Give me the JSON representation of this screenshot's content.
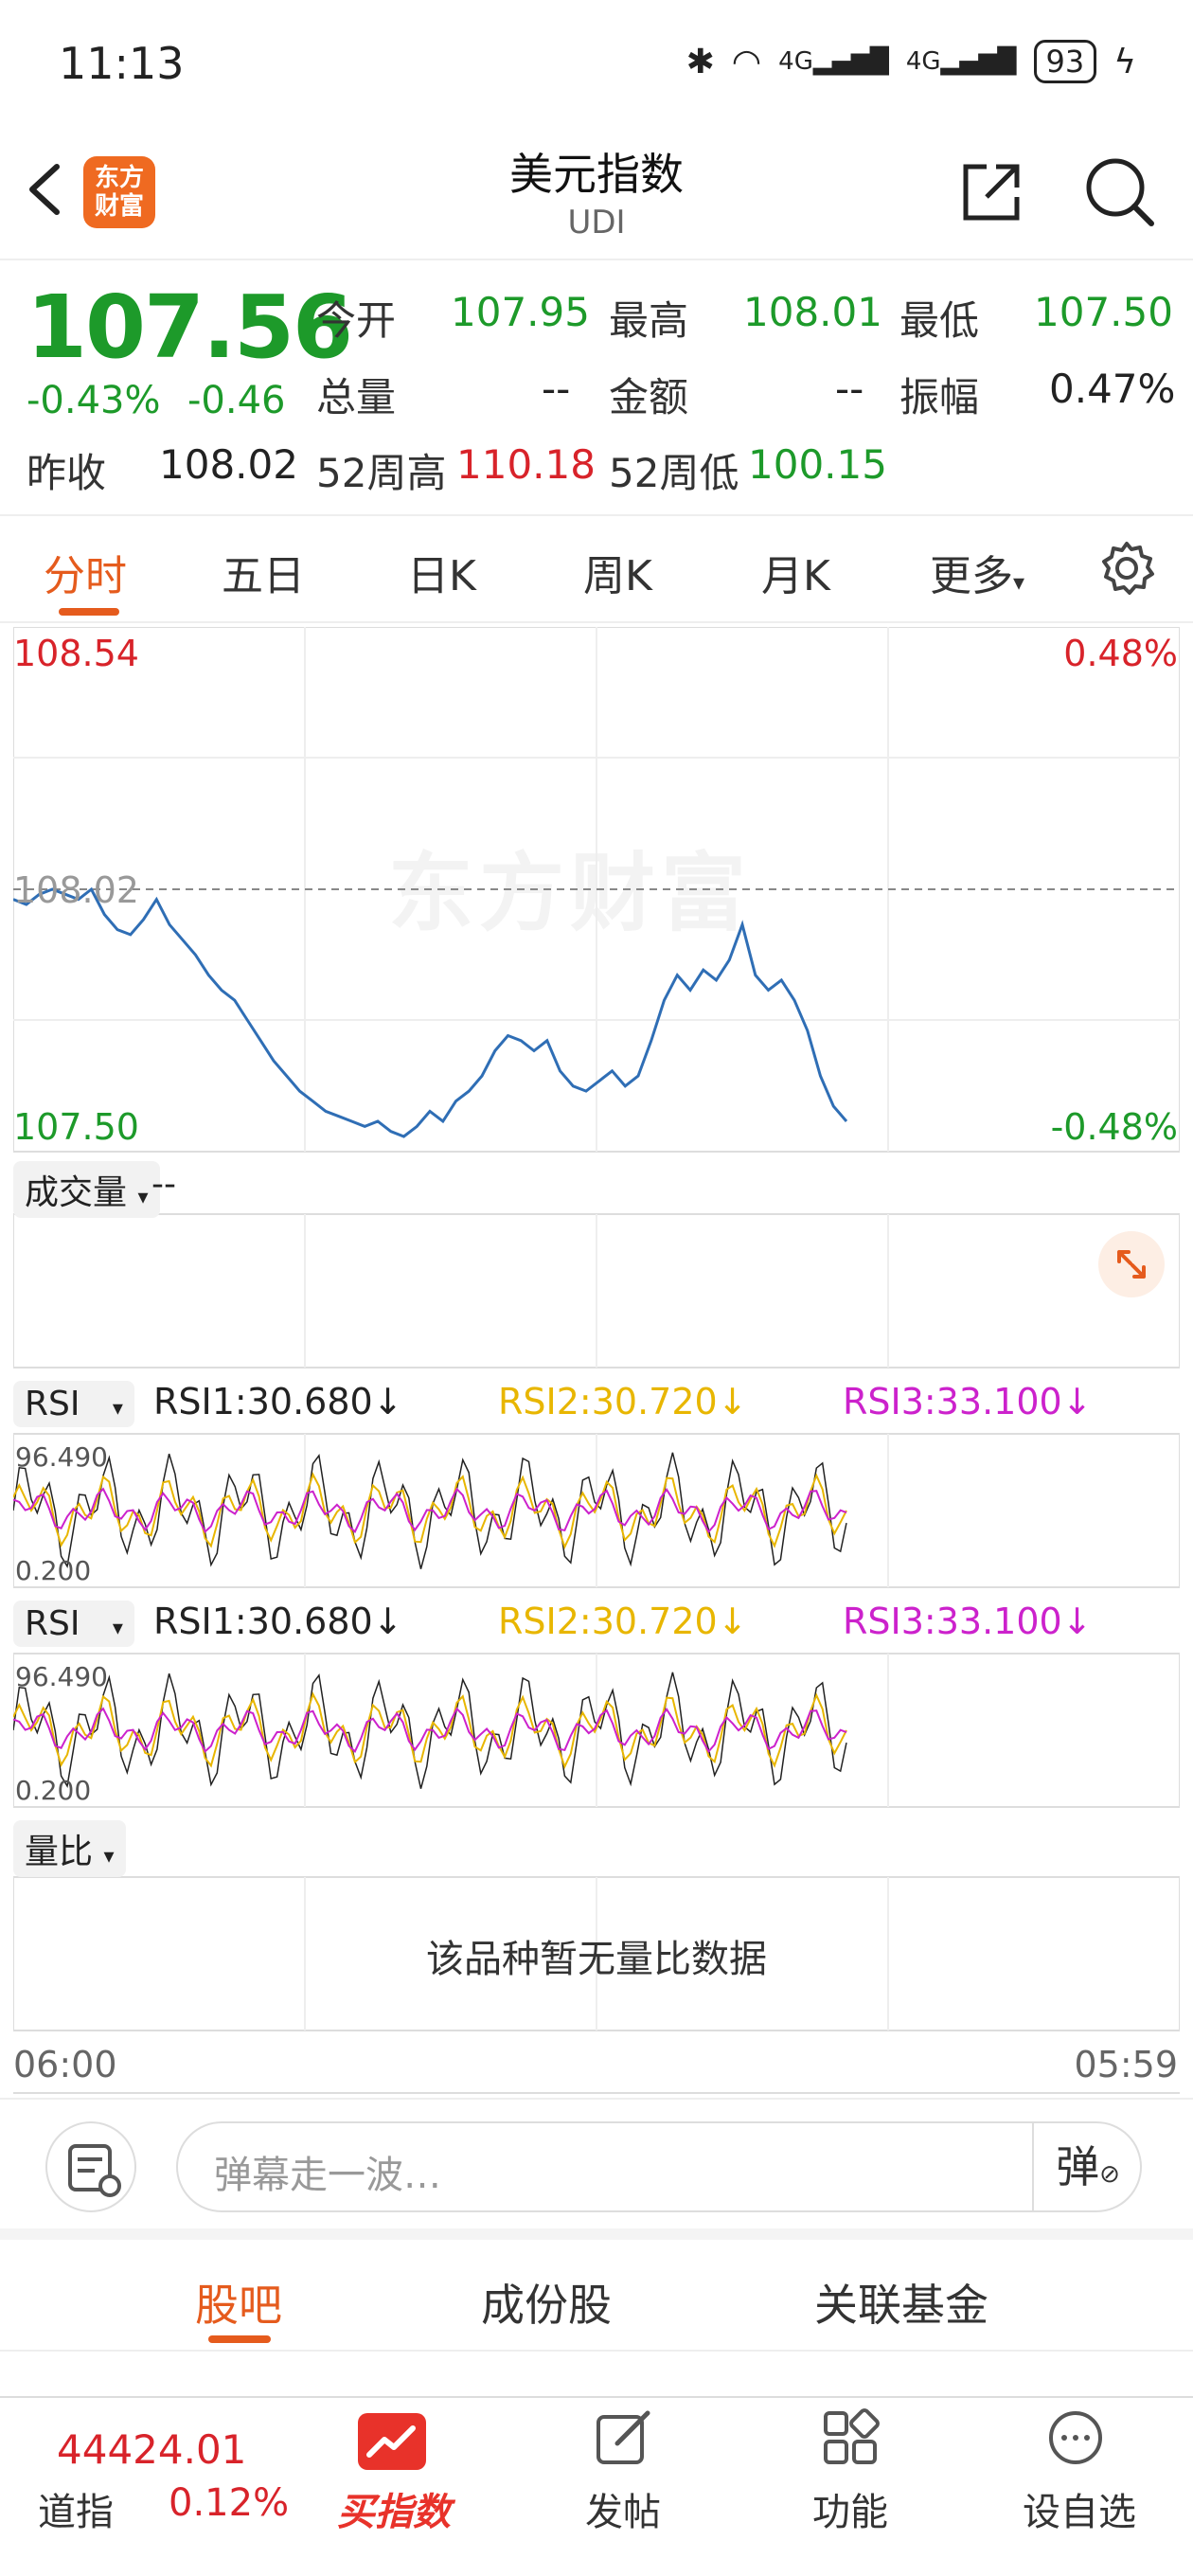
{
  "status_bar": {
    "time": "11:13",
    "signal1": "4G",
    "signal2": "4G",
    "battery": "93"
  },
  "header": {
    "logo_line1": "东方",
    "logo_line2": "财富",
    "title": "美元指数",
    "code": "UDI"
  },
  "quote": {
    "price": "107.56",
    "change_pct": "-0.43%",
    "change": "-0.46",
    "open_label": "今开",
    "open": "107.95",
    "high_label": "最高",
    "high": "108.01",
    "low_label": "最低",
    "low": "107.50",
    "volume_label": "总量",
    "volume": "--",
    "amount_label": "金额",
    "amount": "--",
    "amplitude_label": "振幅",
    "amplitude": "0.47%",
    "prev_close_label": "昨收",
    "prev_close": "108.02",
    "w52_high_label": "52周高",
    "w52_high": "110.18",
    "w52_low_label": "52周低",
    "w52_low": "100.15"
  },
  "tabs": [
    "分时",
    "五日",
    "日K",
    "周K",
    "月K",
    "更多"
  ],
  "chart": {
    "top_price": "108.54",
    "top_pct": "0.48%",
    "mid_price": "108.02",
    "bottom_price": "107.50",
    "bottom_pct": "-0.48%",
    "watermark": "东方财富",
    "volume_label": "成交量",
    "volume_value": "--",
    "rsi_label": "RSI",
    "rsi1": "RSI1:30.680↓",
    "rsi2": "RSI2:30.720↓",
    "rsi3": "RSI3:33.100↓",
    "rsi_top": "96.490",
    "rsi_bottom": "0.200",
    "ratio_label": "量比",
    "ratio_empty": "该品种暂无量比数据",
    "time_start": "06:00",
    "time_end": "05:59"
  },
  "chart_data": {
    "type": "line",
    "ylim": [
      107.5,
      108.54
    ],
    "reference": 108.02,
    "series": [
      {
        "values": [
          108.0,
          107.99,
          108.01,
          108.02,
          108.01,
          108.0,
          108.02,
          107.97,
          107.94,
          107.93,
          107.96,
          108.0,
          107.95,
          107.92,
          107.89,
          107.85,
          107.82,
          107.8,
          107.76,
          107.72,
          107.68,
          107.65,
          107.62,
          107.6,
          107.58,
          107.57,
          107.56,
          107.55,
          107.56,
          107.54,
          107.53,
          107.55,
          107.58,
          107.56,
          107.6,
          107.62,
          107.65,
          107.7,
          107.73,
          107.72,
          107.7,
          107.72,
          107.66,
          107.63,
          107.62,
          107.64,
          107.66,
          107.63,
          107.65,
          107.72,
          107.8,
          107.85,
          107.82,
          107.86,
          107.84,
          107.88,
          107.95,
          107.85,
          107.82,
          107.84,
          107.8,
          107.74,
          107.65,
          107.59,
          107.56
        ]
      }
    ]
  },
  "comment": {
    "placeholder": "弹幕走一波…",
    "danmu_label": "弹"
  },
  "sub_tabs": [
    "股吧",
    "成份股",
    "关联基金"
  ],
  "bottom_nav": {
    "ticker_value": "44424.01",
    "ticker_name": "道指",
    "ticker_pct": "0.12%",
    "buy_label": "买指数",
    "post_label": "发帖",
    "func_label": "功能",
    "watch_label": "设自选"
  },
  "colors": {
    "up": "#d8232a",
    "down": "#1d9a2a",
    "accent": "#e55b1d",
    "line": "#2f6eb5",
    "rsi2": "#e8b600",
    "rsi3": "#cc22cc"
  }
}
